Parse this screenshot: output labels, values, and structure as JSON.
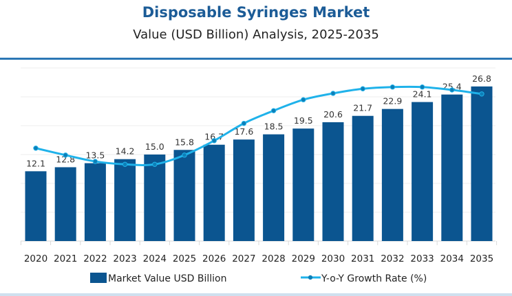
{
  "chart_data": {
    "type": "bar",
    "title": "Disposable Syringes Market",
    "subtitle": "Value (USD Billion) Analysis, 2025-2035",
    "categories": [
      "2020",
      "2021",
      "2022",
      "2023",
      "2024",
      "2025",
      "2026",
      "2027",
      "2028",
      "2029",
      "2030",
      "2031",
      "2032",
      "2033",
      "2034",
      "2035"
    ],
    "series": [
      {
        "name": "Market Value USD Billion",
        "type": "bar",
        "color": "#0b5590",
        "values": [
          12.1,
          12.8,
          13.5,
          14.2,
          15.0,
          15.8,
          16.7,
          17.6,
          18.5,
          19.5,
          20.6,
          21.7,
          22.9,
          24.1,
          25.4,
          26.8
        ],
        "labels": [
          "12.1",
          "12.8",
          "13.5",
          "14.2",
          "15.0",
          "15.8",
          "16.7",
          "17.6",
          "18.5",
          "19.5",
          "20.6",
          "21.7",
          "22.9",
          "24.1",
          "25.4",
          "26.8"
        ]
      },
      {
        "name": "Y-o-Y Growth Rate (%)",
        "type": "line",
        "color": "#1fb2ea",
        "values": [
          16.1,
          14.9,
          13.8,
          13.3,
          13.3,
          14.9,
          17.4,
          20.4,
          22.6,
          24.5,
          25.6,
          26.4,
          26.7,
          26.7,
          26.2,
          25.5
        ]
      }
    ],
    "ylim": [
      0,
      30
    ],
    "grid": true,
    "legend": "bottom",
    "accent_color": "#1c5c97"
  }
}
